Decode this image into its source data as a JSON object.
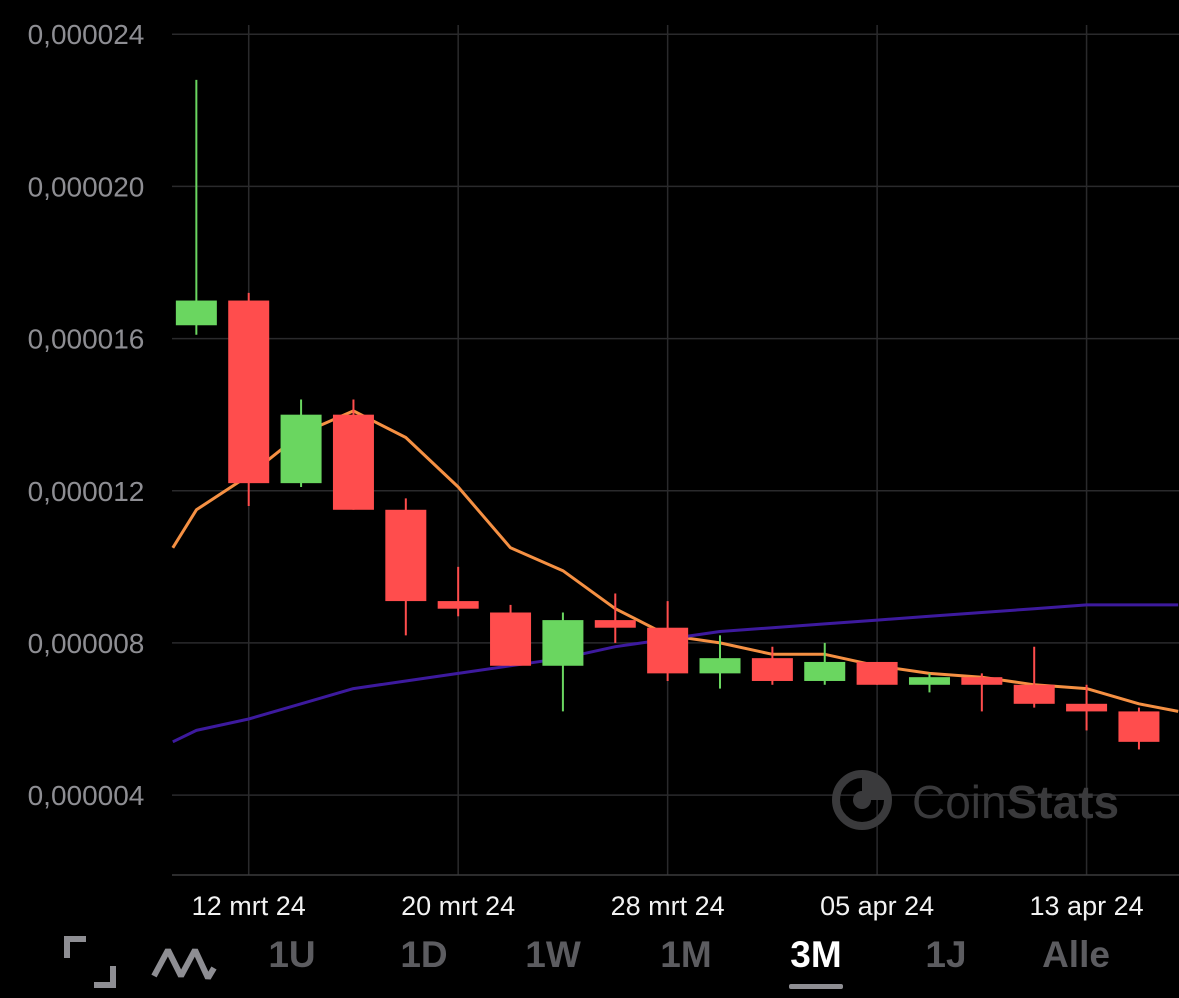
{
  "chart_data": {
    "type": "candlestick",
    "y_ticks": [
      "0,000024",
      "0,000020",
      "0,000016",
      "0,000012",
      "0,000008",
      "0,000004"
    ],
    "y_tick_values": [
      2.4e-05,
      2e-05,
      1.6e-05,
      1.2e-05,
      8e-06,
      4e-06
    ],
    "ylim": [
      1.9e-06,
      2.49e-05
    ],
    "x_ticks": [
      "12 mrt 24",
      "20 mrt 24",
      "28 mrt 24",
      "05 apr 24",
      "13 apr 24"
    ],
    "x_tick_days": [
      12,
      20,
      28,
      36,
      44
    ],
    "xlim": [
      9.07,
      47.53
    ],
    "grid": true,
    "candles": [
      {
        "day": 10,
        "open": 1.635e-05,
        "high": 2.28e-05,
        "low": 1.61e-05,
        "close": 1.7e-05
      },
      {
        "day": 12,
        "open": 1.7e-05,
        "high": 1.72e-05,
        "low": 1.16e-05,
        "close": 1.22e-05
      },
      {
        "day": 14,
        "open": 1.22e-05,
        "high": 1.44e-05,
        "low": 1.21e-05,
        "close": 1.4e-05
      },
      {
        "day": 16,
        "open": 1.4e-05,
        "high": 1.44e-05,
        "low": 1.15e-05,
        "close": 1.15e-05
      },
      {
        "day": 18,
        "open": 1.15e-05,
        "high": 1.18e-05,
        "low": 8.2e-06,
        "close": 9.1e-06
      },
      {
        "day": 20,
        "open": 9.1e-06,
        "high": 1e-05,
        "low": 8.7e-06,
        "close": 8.9e-06
      },
      {
        "day": 22,
        "open": 8.8e-06,
        "high": 9e-06,
        "low": 7.4e-06,
        "close": 7.4e-06
      },
      {
        "day": 24,
        "open": 7.4e-06,
        "high": 8.8e-06,
        "low": 6.2e-06,
        "close": 8.6e-06
      },
      {
        "day": 26,
        "open": 8.6e-06,
        "high": 9.3e-06,
        "low": 8e-06,
        "close": 8.4e-06
      },
      {
        "day": 28,
        "open": 8.4e-06,
        "high": 9.1e-06,
        "low": 7e-06,
        "close": 7.2e-06
      },
      {
        "day": 30,
        "open": 7.2e-06,
        "high": 8.2e-06,
        "low": 6.8e-06,
        "close": 7.6e-06
      },
      {
        "day": 32,
        "open": 7.6e-06,
        "high": 7.9e-06,
        "low": 6.9e-06,
        "close": 7e-06
      },
      {
        "day": 34,
        "open": 7e-06,
        "high": 8e-06,
        "low": 6.9e-06,
        "close": 7.5e-06
      },
      {
        "day": 36,
        "open": 7.5e-06,
        "high": 7.5e-06,
        "low": 6.9e-06,
        "close": 6.9e-06
      },
      {
        "day": 38,
        "open": 6.9e-06,
        "high": 7.2e-06,
        "low": 6.7e-06,
        "close": 7.1e-06
      },
      {
        "day": 40,
        "open": 7.1e-06,
        "high": 7.2e-06,
        "low": 6.2e-06,
        "close": 6.9e-06
      },
      {
        "day": 42,
        "open": 6.9e-06,
        "high": 7.9e-06,
        "low": 6.3e-06,
        "close": 6.4e-06
      },
      {
        "day": 44,
        "open": 6.4e-06,
        "high": 6.9e-06,
        "low": 5.7e-06,
        "close": 6.2e-06
      },
      {
        "day": 46,
        "open": 6.2e-06,
        "high": 6.3e-06,
        "low": 5.2e-06,
        "close": 5.4e-06
      }
    ],
    "series": [
      {
        "color": "#f59043",
        "x": [
          9.1,
          10,
          12,
          14,
          16,
          18,
          20,
          22,
          24,
          26,
          28,
          30,
          32,
          34,
          36,
          38,
          40,
          42,
          44,
          46,
          47.5
        ],
        "values": [
          1.05e-05,
          1.15e-05,
          1.24e-05,
          1.35e-05,
          1.41e-05,
          1.34e-05,
          1.21e-05,
          1.05e-05,
          9.9e-06,
          8.9e-06,
          8.2e-06,
          8e-06,
          7.7e-06,
          7.7e-06,
          7.4e-06,
          7.2e-06,
          7.1e-06,
          6.9e-06,
          6.8e-06,
          6.4e-06,
          6.2e-06
        ]
      },
      {
        "color": "#3d1a9e",
        "x": [
          9.1,
          10,
          12,
          14,
          16,
          18,
          20,
          22,
          24,
          26,
          28,
          30,
          32,
          34,
          36,
          38,
          40,
          42,
          44,
          46,
          47.5
        ],
        "values": [
          5.4e-06,
          5.7e-06,
          6e-06,
          6.4e-06,
          6.8e-06,
          7e-06,
          7.2e-06,
          7.4e-06,
          7.6e-06,
          7.9e-06,
          8.1e-06,
          8.3e-06,
          8.4e-06,
          8.5e-06,
          8.6e-06,
          8.7e-06,
          8.8e-06,
          8.9e-06,
          9e-06,
          9e-06,
          9e-06
        ]
      }
    ],
    "colors": {
      "up": "#6ad660",
      "down": "#ff4d4d",
      "grid": "#2a2a2c"
    }
  },
  "watermark": {
    "text_light": "Coin",
    "text_bold": "Stats"
  },
  "toolbar": {
    "expand_icon": "expand-icon",
    "line_icon": "line-chart-icon",
    "ranges": [
      "1U",
      "1D",
      "1W",
      "1M",
      "3M",
      "1J",
      "Alle"
    ],
    "active_range": "3M"
  }
}
